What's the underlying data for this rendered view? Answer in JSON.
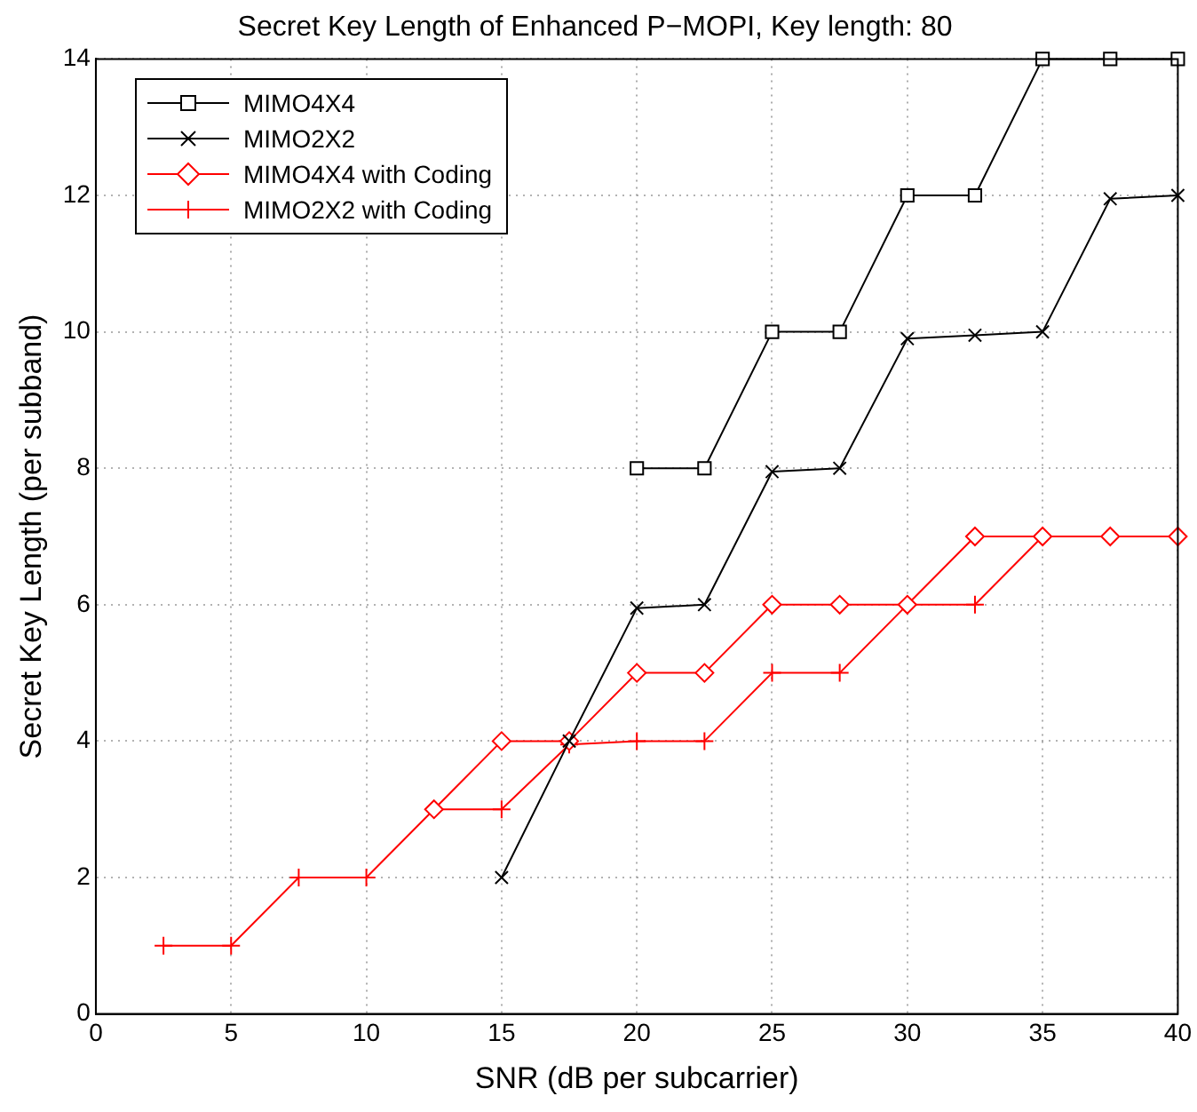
{
  "chart_data": {
    "type": "line",
    "title": "Secret Key Length of Enhanced P−MOPI, Key length: 80",
    "xlabel": "SNR (dB per subcarrier)",
    "ylabel": "Secret Key Length (per subband)",
    "xlim": [
      0,
      40
    ],
    "xticks": [
      0,
      5,
      10,
      15,
      20,
      25,
      30,
      35,
      40
    ],
    "ylim": [
      0,
      14
    ],
    "yticks": [
      0,
      2,
      4,
      6,
      8,
      10,
      12,
      14
    ],
    "grid": true,
    "legend": "top left",
    "line_style": "solid",
    "series": [
      {
        "name": "MIMO4X4",
        "color": "#000000",
        "marker": "square",
        "x": [
          20,
          22.5,
          25,
          27.5,
          30,
          32.5,
          35,
          37.5,
          40
        ],
        "values": [
          8,
          8,
          10,
          10,
          12,
          12,
          14,
          14,
          14
        ]
      },
      {
        "name": "MIMO2X2",
        "color": "#000000",
        "marker": "cross",
        "x": [
          15,
          17.5,
          20,
          22.5,
          25,
          27.5,
          30,
          32.5,
          35,
          37.5,
          40
        ],
        "values": [
          2,
          4,
          5.95,
          6,
          7.95,
          8,
          9.9,
          9.95,
          10,
          11.95,
          12
        ]
      },
      {
        "name": "MIMO4X4 with Coding",
        "color": "#ff0000",
        "marker": "diamond",
        "x": [
          12.5,
          15,
          17.5,
          20,
          22.5,
          25,
          27.5,
          30,
          32.5,
          35,
          37.5,
          40
        ],
        "values": [
          3,
          4,
          4,
          5,
          5,
          6,
          6,
          6,
          7,
          7,
          7,
          7
        ]
      },
      {
        "name": "MIMO2X2 with Coding",
        "color": "#ff0000",
        "marker": "plus",
        "x": [
          2.5,
          5,
          7.5,
          10,
          12.5,
          15,
          17.5,
          20,
          22.5,
          25,
          27.5,
          30,
          32.5,
          35,
          37.5,
          40
        ],
        "values": [
          1,
          1,
          2,
          2,
          3,
          3,
          3.95,
          4,
          4,
          5,
          5,
          6,
          6,
          7,
          7,
          7
        ]
      }
    ]
  }
}
